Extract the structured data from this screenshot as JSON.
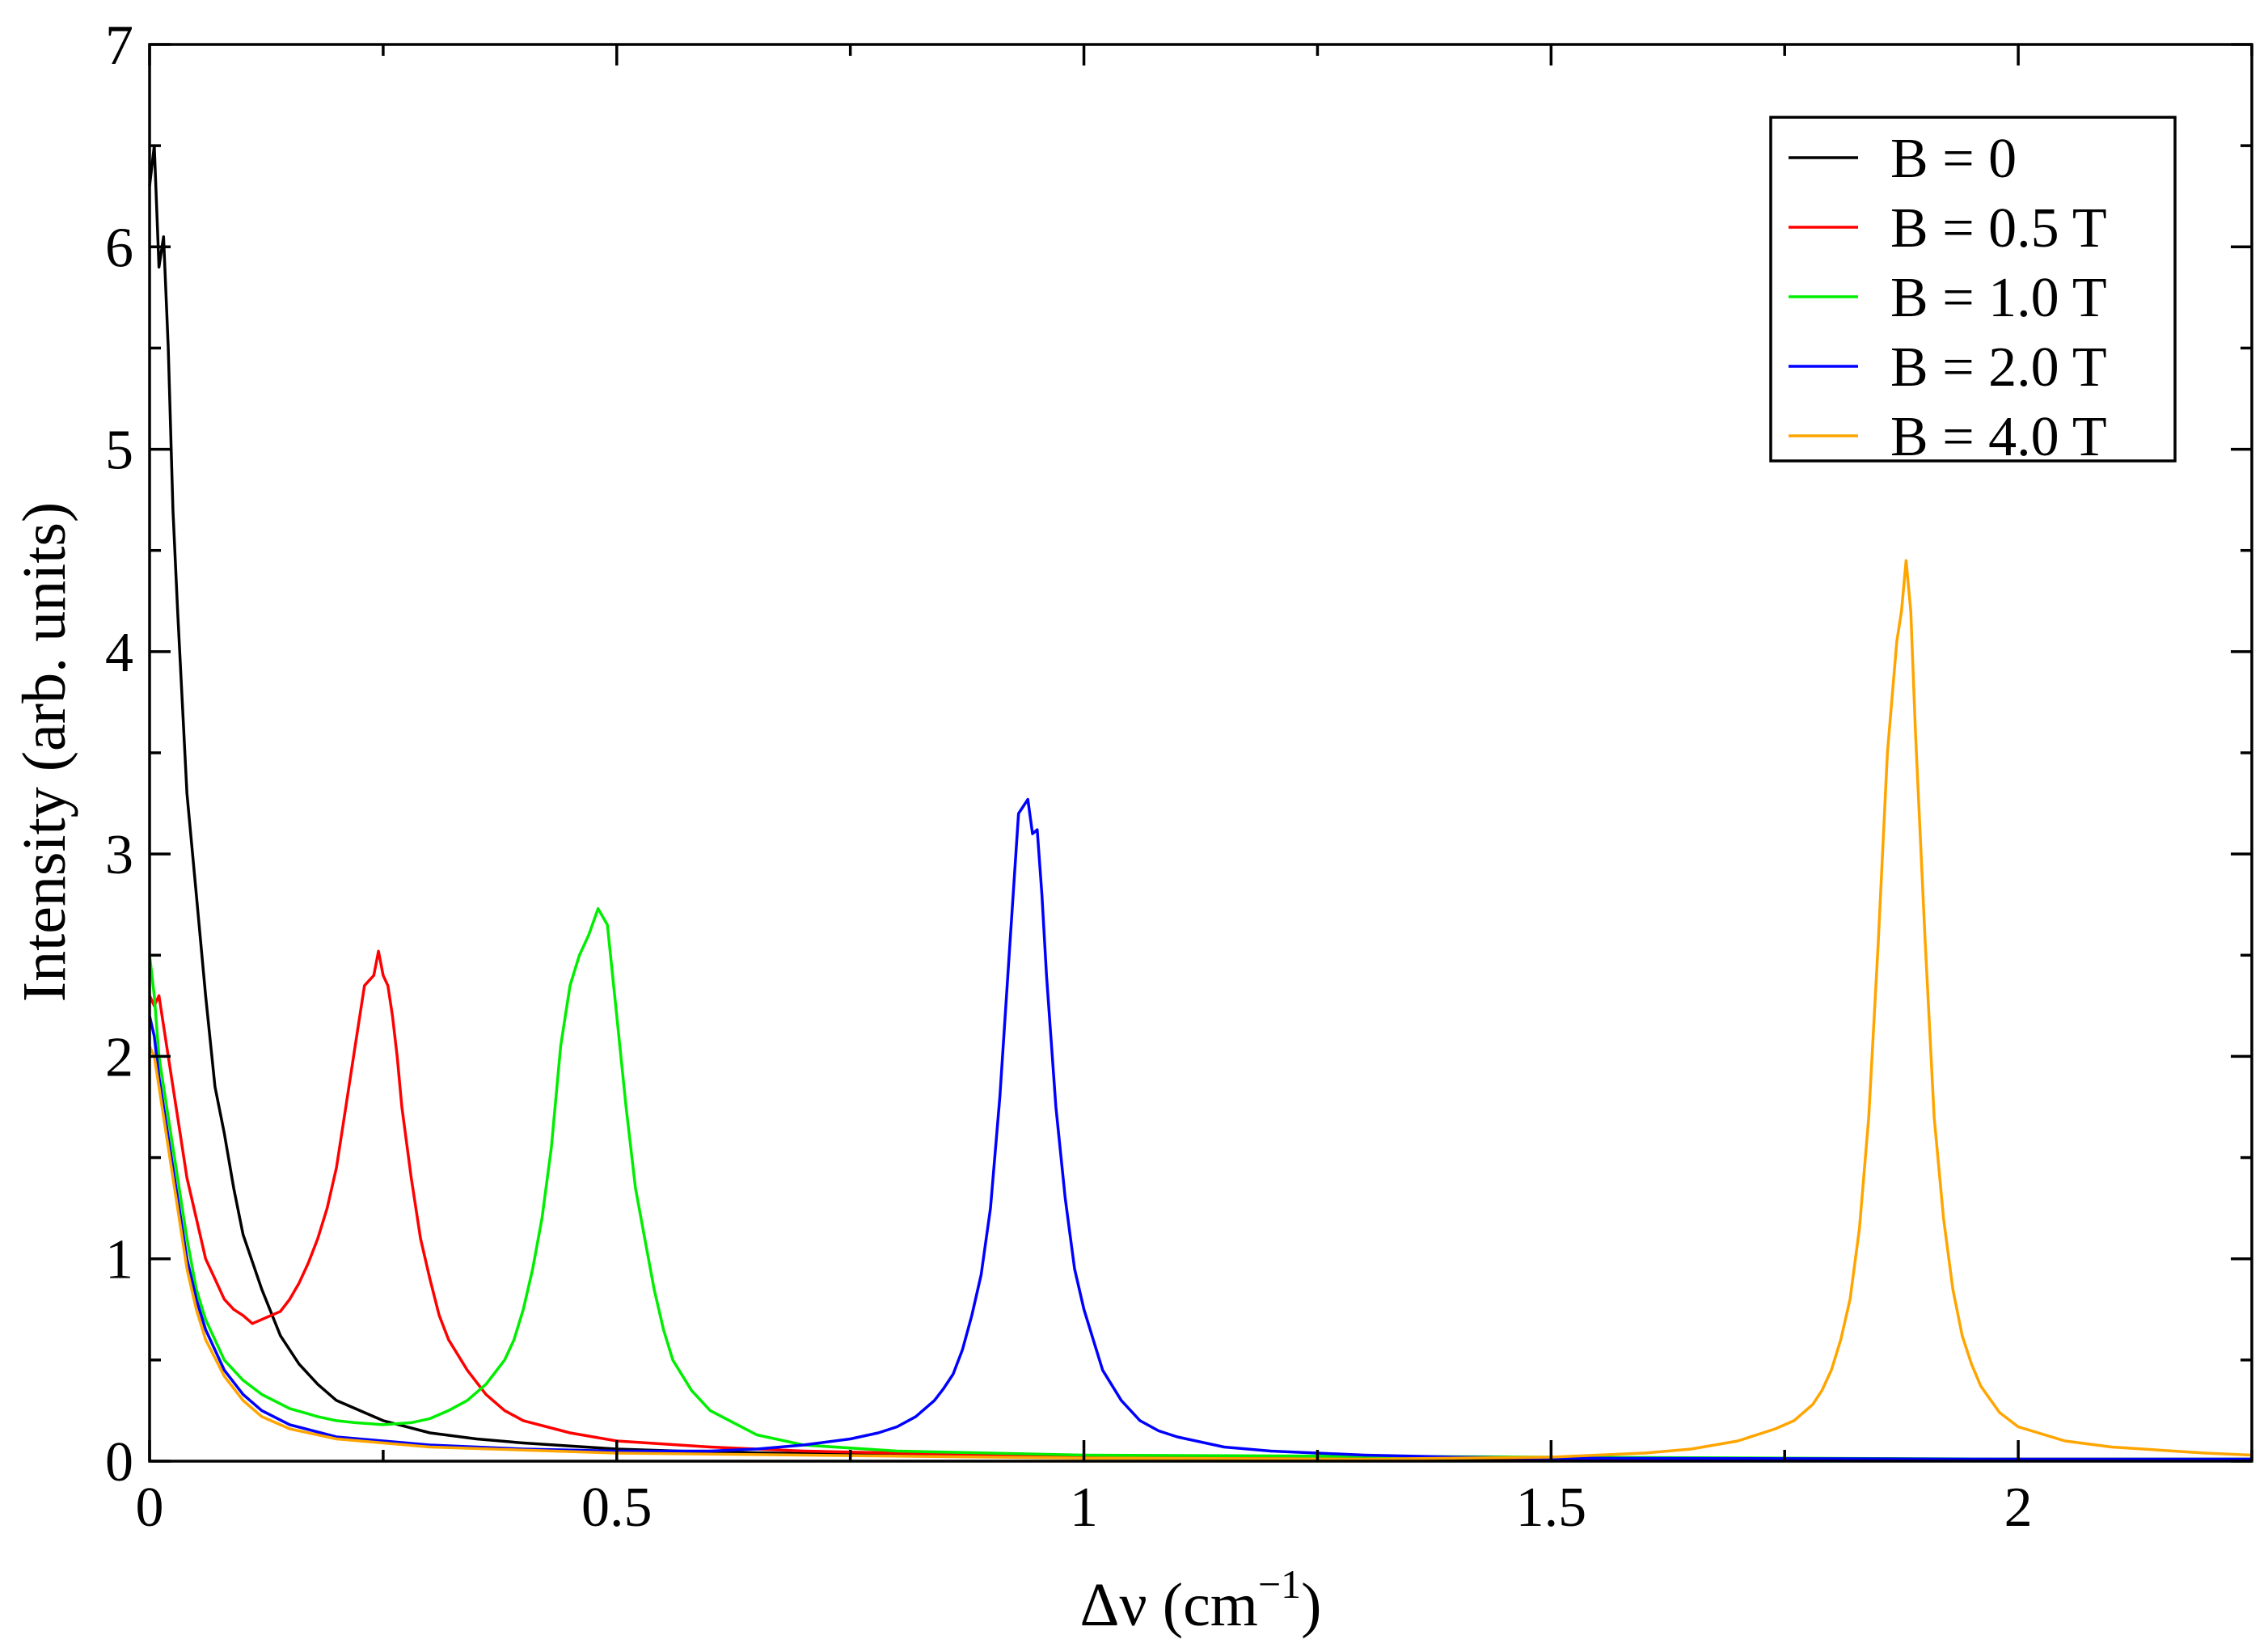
{
  "chart_data": {
    "type": "line",
    "title": "",
    "xlabel": "Δν (cm",
    "xlabel_sup": "−1",
    "xlabel_close": ")",
    "ylabel": "Intensity (arb. units)",
    "xlim": [
      0,
      2.25
    ],
    "ylim": [
      0,
      7
    ],
    "xticks": [
      0,
      0.5,
      1,
      1.5,
      2
    ],
    "xtick_labels": [
      "0",
      "0.5",
      "1",
      "1.5",
      "2"
    ],
    "xminor": [
      0.25,
      0.75,
      1.25,
      1.75,
      2.25
    ],
    "yticks": [
      0,
      1,
      2,
      3,
      4,
      5,
      6,
      7
    ],
    "ytick_labels": [
      "0",
      "1",
      "2",
      "3",
      "4",
      "5",
      "6",
      "7"
    ],
    "yminor": [
      0.5,
      1.5,
      2.5,
      3.5,
      4.5,
      5.5,
      6.5
    ],
    "grid": false,
    "legend_position": "top-right",
    "series": [
      {
        "name": "B = 0",
        "color": "#000000",
        "x": [
          0,
          0.005,
          0.01,
          0.015,
          0.02,
          0.025,
          0.03,
          0.04,
          0.05,
          0.06,
          0.07,
          0.08,
          0.09,
          0.1,
          0.12,
          0.14,
          0.16,
          0.18,
          0.2,
          0.25,
          0.3,
          0.35,
          0.4,
          0.5,
          0.6,
          0.8,
          1.0,
          1.5,
          2.0,
          2.25
        ],
        "y": [
          6.3,
          6.5,
          5.9,
          6.05,
          5.5,
          4.7,
          4.2,
          3.3,
          2.8,
          2.3,
          1.85,
          1.62,
          1.35,
          1.12,
          0.85,
          0.62,
          0.48,
          0.38,
          0.3,
          0.2,
          0.14,
          0.11,
          0.09,
          0.06,
          0.045,
          0.03,
          0.02,
          0.01,
          0.01,
          0.01
        ]
      },
      {
        "name": "B = 0.5 T",
        "color": "#ff0000",
        "x": [
          0,
          0.005,
          0.01,
          0.02,
          0.03,
          0.04,
          0.05,
          0.06,
          0.07,
          0.08,
          0.09,
          0.1,
          0.11,
          0.12,
          0.13,
          0.14,
          0.15,
          0.16,
          0.17,
          0.18,
          0.19,
          0.2,
          0.21,
          0.22,
          0.23,
          0.24,
          0.245,
          0.25,
          0.255,
          0.26,
          0.265,
          0.27,
          0.28,
          0.29,
          0.3,
          0.31,
          0.32,
          0.34,
          0.36,
          0.38,
          0.4,
          0.45,
          0.5,
          0.6,
          0.7,
          0.8,
          1.0,
          1.5,
          2.0,
          2.25
        ],
        "y": [
          2.3,
          2.25,
          2.3,
          2.0,
          1.7,
          1.4,
          1.2,
          1.0,
          0.9,
          0.8,
          0.75,
          0.72,
          0.68,
          0.7,
          0.72,
          0.74,
          0.8,
          0.88,
          0.98,
          1.1,
          1.25,
          1.45,
          1.75,
          2.05,
          2.35,
          2.4,
          2.52,
          2.4,
          2.35,
          2.2,
          2.0,
          1.75,
          1.4,
          1.1,
          0.9,
          0.72,
          0.6,
          0.45,
          0.33,
          0.25,
          0.2,
          0.14,
          0.1,
          0.07,
          0.05,
          0.04,
          0.025,
          0.015,
          0.01,
          0.01
        ]
      },
      {
        "name": "B = 1.0 T",
        "color": "#00ee00",
        "x": [
          0,
          0.005,
          0.01,
          0.02,
          0.03,
          0.04,
          0.05,
          0.06,
          0.08,
          0.1,
          0.12,
          0.15,
          0.18,
          0.2,
          0.22,
          0.25,
          0.28,
          0.3,
          0.32,
          0.34,
          0.36,
          0.38,
          0.39,
          0.4,
          0.41,
          0.42,
          0.43,
          0.44,
          0.45,
          0.46,
          0.47,
          0.48,
          0.49,
          0.5,
          0.51,
          0.52,
          0.53,
          0.54,
          0.55,
          0.56,
          0.58,
          0.6,
          0.65,
          0.7,
          0.8,
          1.0,
          1.5,
          2.0,
          2.25
        ],
        "y": [
          2.5,
          2.3,
          2.0,
          1.7,
          1.4,
          1.1,
          0.85,
          0.7,
          0.5,
          0.4,
          0.33,
          0.26,
          0.22,
          0.2,
          0.19,
          0.18,
          0.19,
          0.21,
          0.25,
          0.3,
          0.38,
          0.5,
          0.6,
          0.75,
          0.95,
          1.2,
          1.55,
          2.05,
          2.35,
          2.5,
          2.6,
          2.73,
          2.65,
          2.2,
          1.75,
          1.35,
          1.1,
          0.85,
          0.65,
          0.5,
          0.35,
          0.25,
          0.13,
          0.08,
          0.05,
          0.03,
          0.02,
          0.01,
          0.01
        ]
      },
      {
        "name": "B = 2.0 T",
        "color": "#0000ff",
        "x": [
          0,
          0.005,
          0.01,
          0.02,
          0.03,
          0.04,
          0.05,
          0.06,
          0.08,
          0.1,
          0.12,
          0.15,
          0.2,
          0.3,
          0.4,
          0.5,
          0.6,
          0.65,
          0.7,
          0.75,
          0.78,
          0.8,
          0.82,
          0.84,
          0.85,
          0.86,
          0.87,
          0.88,
          0.89,
          0.9,
          0.91,
          0.92,
          0.93,
          0.94,
          0.945,
          0.95,
          0.955,
          0.96,
          0.97,
          0.98,
          0.99,
          1.0,
          1.01,
          1.02,
          1.04,
          1.06,
          1.08,
          1.1,
          1.15,
          1.2,
          1.3,
          1.4,
          1.5,
          2.0,
          2.25
        ],
        "y": [
          2.2,
          2.1,
          1.9,
          1.6,
          1.3,
          1.0,
          0.8,
          0.65,
          0.45,
          0.33,
          0.25,
          0.18,
          0.12,
          0.08,
          0.06,
          0.05,
          0.05,
          0.06,
          0.08,
          0.11,
          0.14,
          0.17,
          0.22,
          0.3,
          0.36,
          0.43,
          0.55,
          0.72,
          0.92,
          1.25,
          1.8,
          2.5,
          3.2,
          3.27,
          3.1,
          3.12,
          2.8,
          2.4,
          1.75,
          1.3,
          0.95,
          0.75,
          0.6,
          0.45,
          0.3,
          0.2,
          0.15,
          0.12,
          0.07,
          0.05,
          0.03,
          0.02,
          0.015,
          0.01,
          0.01
        ]
      },
      {
        "name": "B = 4.0 T",
        "color": "#ffa500",
        "x": [
          0,
          0.005,
          0.01,
          0.02,
          0.03,
          0.04,
          0.05,
          0.06,
          0.08,
          0.1,
          0.12,
          0.15,
          0.2,
          0.3,
          0.5,
          1.0,
          1.3,
          1.5,
          1.6,
          1.65,
          1.7,
          1.74,
          1.76,
          1.78,
          1.79,
          1.8,
          1.81,
          1.82,
          1.83,
          1.84,
          1.85,
          1.86,
          1.87,
          1.875,
          1.88,
          1.885,
          1.89,
          1.9,
          1.91,
          1.92,
          1.93,
          1.94,
          1.95,
          1.96,
          1.98,
          2.0,
          2.05,
          2.1,
          2.2,
          2.25
        ],
        "y": [
          2.05,
          2.0,
          1.85,
          1.55,
          1.25,
          0.95,
          0.75,
          0.6,
          0.42,
          0.3,
          0.22,
          0.16,
          0.11,
          0.07,
          0.04,
          0.015,
          0.01,
          0.02,
          0.04,
          0.06,
          0.1,
          0.16,
          0.2,
          0.28,
          0.35,
          0.45,
          0.6,
          0.8,
          1.15,
          1.7,
          2.55,
          3.5,
          4.05,
          4.2,
          4.45,
          4.2,
          3.6,
          2.6,
          1.7,
          1.2,
          0.85,
          0.62,
          0.48,
          0.37,
          0.24,
          0.17,
          0.1,
          0.07,
          0.04,
          0.03
        ]
      }
    ]
  }
}
